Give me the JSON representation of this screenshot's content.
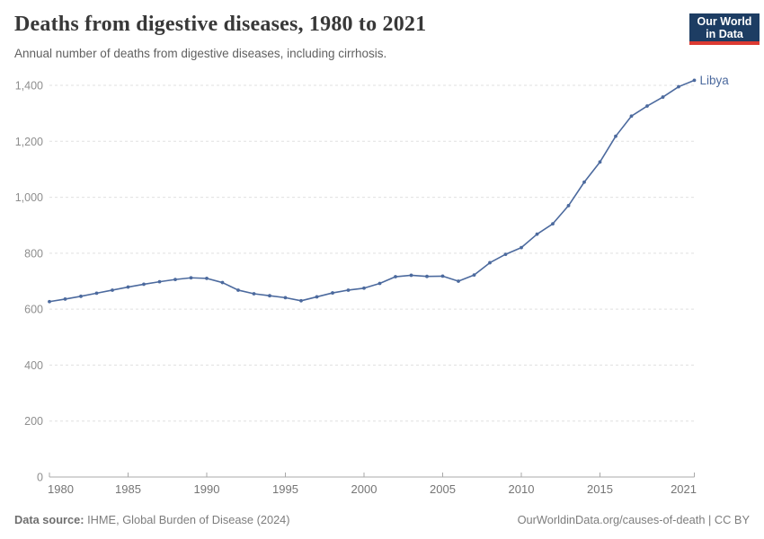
{
  "header": {
    "title": "Deaths from digestive diseases, 1980 to 2021",
    "subtitle": "Annual number of deaths from digestive diseases, including cirrhosis.",
    "logo": {
      "line1": "Our World",
      "line2": "in Data",
      "bg_color": "#1d3d63",
      "accent_color": "#dc3a32"
    }
  },
  "chart_data": {
    "type": "line",
    "title": "Deaths from digestive diseases, 1980 to 2021",
    "subtitle": "Annual number of deaths from digestive diseases, including cirrhosis.",
    "xlabel": "",
    "ylabel": "",
    "xlim": [
      1980,
      2021
    ],
    "ylim": [
      0,
      1400
    ],
    "grid": "horizontal-dashed",
    "legend": "end-of-line-label",
    "colors": {
      "line": "#4c6a9e",
      "gridline": "#e0e0e0",
      "axis": "#a8a8a8",
      "y_tick_text": "#8e8e8e",
      "x_tick_text": "#757575"
    },
    "yticks": [
      {
        "value": 0,
        "label": "0"
      },
      {
        "value": 200,
        "label": "200"
      },
      {
        "value": 400,
        "label": "400"
      },
      {
        "value": 600,
        "label": "600"
      },
      {
        "value": 800,
        "label": "800"
      },
      {
        "value": 1000,
        "label": "1,000"
      },
      {
        "value": 1200,
        "label": "1,200"
      },
      {
        "value": 1400,
        "label": "1,400"
      }
    ],
    "xticks": [
      {
        "value": 1980,
        "label": "1980"
      },
      {
        "value": 1985,
        "label": "1985"
      },
      {
        "value": 1990,
        "label": "1990"
      },
      {
        "value": 1995,
        "label": "1995"
      },
      {
        "value": 2000,
        "label": "2000"
      },
      {
        "value": 2005,
        "label": "2005"
      },
      {
        "value": 2010,
        "label": "2010"
      },
      {
        "value": 2015,
        "label": "2015"
      },
      {
        "value": 2021,
        "label": "2021"
      }
    ],
    "series": [
      {
        "name": "Libya",
        "color": "#4c6a9e",
        "x": [
          1980,
          1981,
          1982,
          1983,
          1984,
          1985,
          1986,
          1987,
          1988,
          1989,
          1990,
          1991,
          1992,
          1993,
          1994,
          1995,
          1996,
          1997,
          1998,
          1999,
          2000,
          2001,
          2002,
          2003,
          2004,
          2005,
          2006,
          2007,
          2008,
          2009,
          2010,
          2011,
          2012,
          2013,
          2014,
          2015,
          2016,
          2017,
          2018,
          2019,
          2020,
          2021
        ],
        "values": [
          627,
          636,
          646,
          657,
          668,
          679,
          689,
          698,
          706,
          712,
          710,
          695,
          668,
          655,
          648,
          641,
          630,
          644,
          658,
          668,
          675,
          692,
          716,
          721,
          717,
          718,
          700,
          722,
          766,
          796,
          820,
          868,
          905,
          970,
          1054,
          1126,
          1218,
          1290,
          1326,
          1358,
          1395,
          1418
        ]
      }
    ]
  },
  "footer": {
    "source_label": "Data source:",
    "source": " IHME, Global Burden of Disease (2024)",
    "link": "OurWorldinData.org/causes-of-death",
    "separator": " | ",
    "license": "CC BY"
  }
}
